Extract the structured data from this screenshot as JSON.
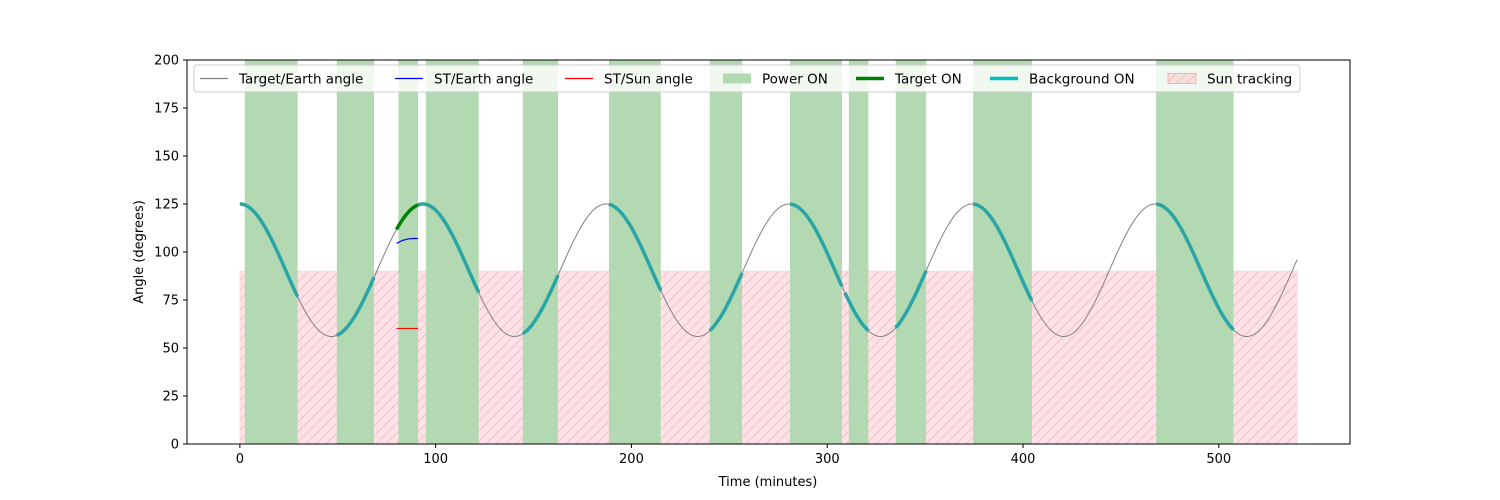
{
  "chart_data": {
    "type": "line",
    "title": "",
    "xlabel": "Time (minutes)",
    "ylabel": "Angle (degrees)",
    "xlim": [
      -27,
      567
    ],
    "ylim": [
      0,
      200
    ],
    "xticks": [
      0,
      100,
      200,
      300,
      400,
      500
    ],
    "yticks": [
      0,
      25,
      50,
      75,
      100,
      125,
      150,
      175,
      200
    ],
    "grid": false,
    "legend_position": "top, inside plot",
    "legend": [
      {
        "label": "Target/Earth angle",
        "kind": "line",
        "color": "#808080"
      },
      {
        "label": "ST/Earth angle",
        "kind": "line",
        "color": "#0000ff"
      },
      {
        "label": "ST/Sun angle",
        "kind": "line",
        "color": "#ff0000"
      },
      {
        "label": "Power ON",
        "kind": "patch",
        "color": "#b3d9b3"
      },
      {
        "label": "Target ON",
        "kind": "thick-line",
        "color": "#008000"
      },
      {
        "label": "Background ON",
        "kind": "thick-line",
        "color": "#00bfbf"
      },
      {
        "label": "Sun tracking",
        "kind": "hatch-patch",
        "color": "#ffc0cb"
      }
    ],
    "target_earth_angle": {
      "description": "sinusoid",
      "center": 90.5,
      "amplitude": 34.5,
      "period": 93.5,
      "peak_at": 93.5,
      "x_range": [
        0,
        540
      ],
      "color": "#808080"
    },
    "st_earth_angle": {
      "x": [
        80,
        83,
        86,
        89,
        91
      ],
      "y": [
        104.5,
        106,
        106.8,
        107.1,
        107
      ],
      "color": "#0000ff"
    },
    "st_sun_angle": {
      "x": [
        80,
        91
      ],
      "y": [
        60.2,
        60.2
      ],
      "color": "#ff0000"
    },
    "power_on_intervals": [
      [
        2.5,
        29.5
      ],
      [
        49.5,
        68.5
      ],
      [
        81,
        91
      ],
      [
        95,
        122
      ],
      [
        144.5,
        162.5
      ],
      [
        188.5,
        215
      ],
      [
        240,
        256.5
      ],
      [
        281,
        307.5
      ],
      [
        311,
        321
      ],
      [
        335,
        350.5
      ],
      [
        374.5,
        404.5
      ],
      [
        468,
        507.5
      ]
    ],
    "target_on_intervals": [
      [
        80,
        91
      ]
    ],
    "background_on_intervals": [
      [
        0,
        29.5
      ],
      [
        49.5,
        68.5
      ],
      [
        91,
        122
      ],
      [
        144.5,
        162.5
      ],
      [
        188.5,
        215
      ],
      [
        240,
        256.5
      ],
      [
        281,
        307.5
      ],
      [
        309,
        321
      ],
      [
        335,
        350.5
      ],
      [
        374.5,
        404.5
      ],
      [
        468,
        507.5
      ]
    ],
    "sun_tracking": {
      "x_range": [
        0,
        540
      ],
      "y_range": [
        0,
        90
      ]
    }
  }
}
